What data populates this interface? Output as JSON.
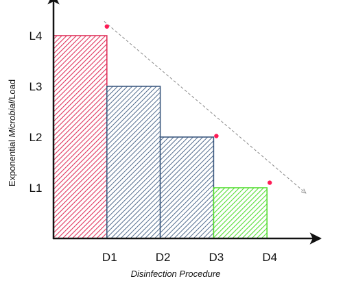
{
  "chart_data": {
    "type": "bar",
    "xlabel": "Disinfection Procedure",
    "ylabel_parts": [
      {
        "text": "Exponential ",
        "style": "normal"
      },
      {
        "text": "Microbial",
        "style": "italic"
      },
      {
        "text": "/Load",
        "style": "normal"
      }
    ],
    "y_ticks": [
      {
        "label": "L1",
        "value": 1
      },
      {
        "label": "L2",
        "value": 2
      },
      {
        "label": "L3",
        "value": 3
      },
      {
        "label": "L4",
        "value": 4
      }
    ],
    "x_ticks": [
      {
        "label": "D1",
        "value": 1
      },
      {
        "label": "D2",
        "value": 2
      },
      {
        "label": "D3",
        "value": 3
      },
      {
        "label": "D4",
        "value": 4
      }
    ],
    "ylim": [
      0,
      4.8
    ],
    "xlim": [
      0,
      4.9
    ],
    "bars": [
      {
        "x0": 0,
        "x1": 1,
        "value": 4,
        "color": "#e0335c",
        "pattern": "diagonal-hatch"
      },
      {
        "x0": 1,
        "x1": 2,
        "value": 3,
        "color": "#3d5a80",
        "pattern": "diagonal-hatch"
      },
      {
        "x0": 2,
        "x1": 3,
        "value": 2,
        "color": "#3d5a80",
        "pattern": "diagonal-hatch"
      },
      {
        "x0": 3,
        "x1": 4,
        "value": 1,
        "color": "#55dd33",
        "pattern": "diagonal-hatch"
      }
    ],
    "points": [
      {
        "x": 1,
        "y": 4.18,
        "color": "#ff1a55"
      },
      {
        "x": 3,
        "y": 2.02,
        "color": "#ff1a55"
      },
      {
        "x": 4,
        "y": 1.1,
        "color": "#ff1a55"
      }
    ],
    "trend_line": {
      "from": {
        "x": 0.95,
        "y": 4.28
      },
      "to": {
        "x": 4.72,
        "y": 0.9
      },
      "color": "#888888",
      "style": "dashed",
      "arrow": true
    },
    "axis_color": "#111111",
    "grid": false,
    "legend": "none"
  }
}
